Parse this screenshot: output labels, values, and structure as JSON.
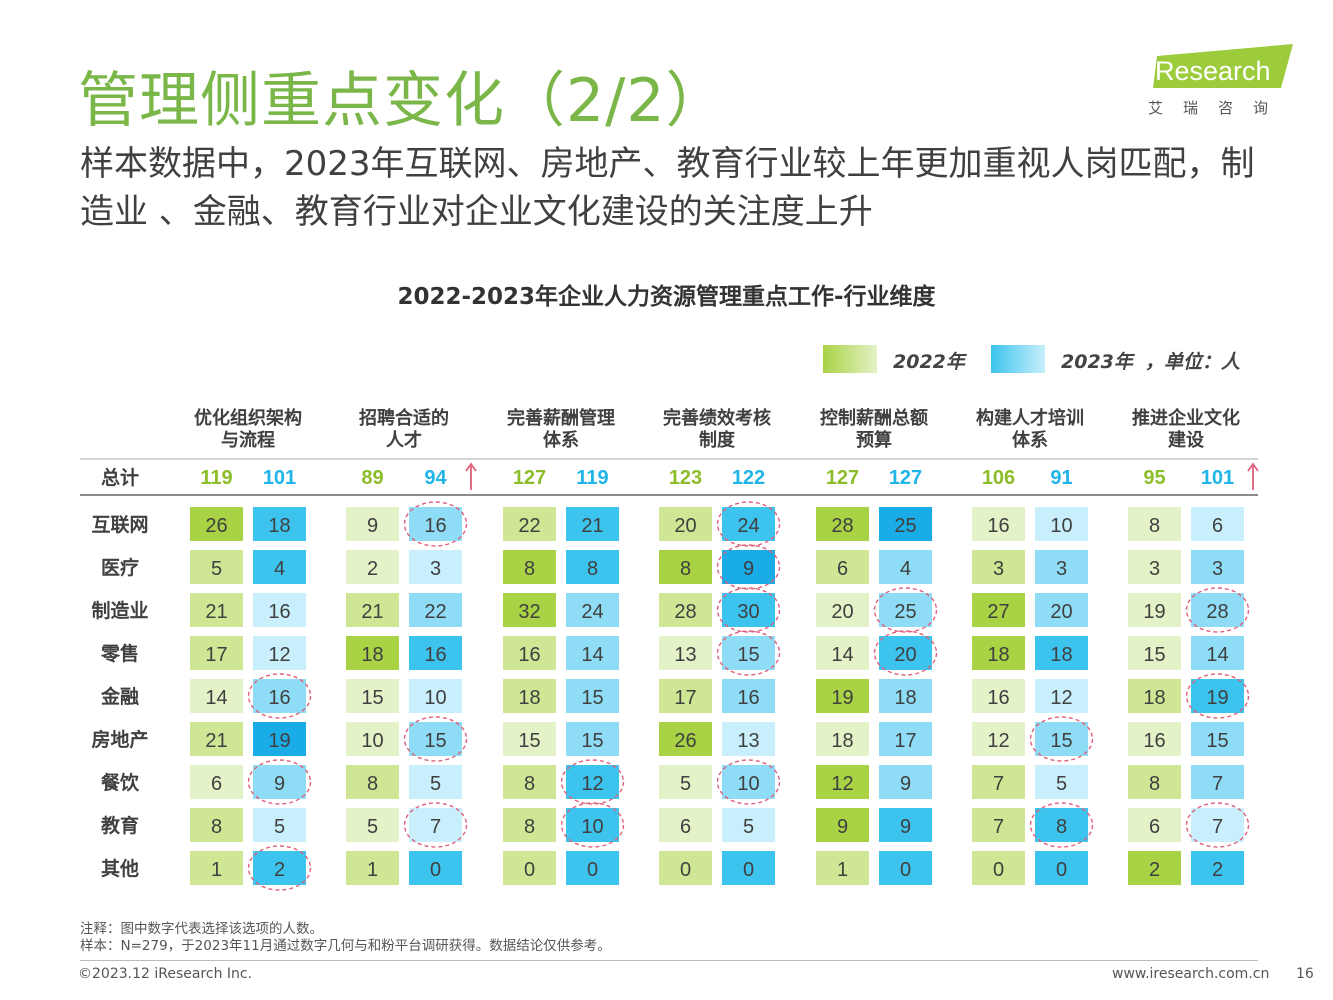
{
  "header": {
    "title": "管理侧重点变化（2/2）",
    "subtitle": "样本数据中，2023年互联网、房地产、教育行业较上年更加重视人岗匹配，制造业 、金融、教育行业对企业文化建设的关注度上升"
  },
  "logo": {
    "brand": "iResearch",
    "brand_cn": "艾瑞咨询",
    "color": "#9ccc3c"
  },
  "chart_data": {
    "type": "table",
    "title": "2022-2023年企业人力资源管理重点工作-行业维度",
    "legend": [
      "2022年",
      "2023年"
    ],
    "unit_label": "，单位：人",
    "colors": {
      "2022": [
        "#e4f2c8",
        "#cfe794",
        "#a9d245"
      ],
      "2023": [
        "#c8effb",
        "#8edcf5",
        "#3cc3ee",
        "#1aace6"
      ],
      "highlight_circle": "#e0607a",
      "up_arrow": "#e0607a",
      "total_2022": "#8cbd2a",
      "total_2023": "#1fb5e8"
    },
    "categories": [
      "优化组织架构\n与流程",
      "招聘合适的\n人才",
      "完善薪酬管理\n体系",
      "完善绩效考核\n制度",
      "控制薪酬总额\n预算",
      "构建人才培训\n体系",
      "推进企业文化\n建设"
    ],
    "total_label": "总计",
    "totals": {
      "2022": [
        119,
        89,
        127,
        123,
        127,
        106,
        95
      ],
      "2023": [
        101,
        94,
        119,
        122,
        127,
        91,
        101
      ]
    },
    "totals_rising": [
      false,
      true,
      false,
      false,
      false,
      false,
      true
    ],
    "rows": [
      "互联网",
      "医疗",
      "制造业",
      "零售",
      "金融",
      "房地产",
      "餐饮",
      "教育",
      "其他"
    ],
    "series": [
      {
        "name": "2022年",
        "values": [
          [
            26,
            9,
            22,
            20,
            28,
            16,
            8
          ],
          [
            5,
            2,
            8,
            8,
            6,
            3,
            3
          ],
          [
            21,
            21,
            32,
            28,
            20,
            27,
            19
          ],
          [
            17,
            18,
            16,
            13,
            14,
            18,
            15
          ],
          [
            14,
            15,
            18,
            17,
            19,
            16,
            18
          ],
          [
            21,
            10,
            15,
            26,
            18,
            12,
            16
          ],
          [
            6,
            8,
            8,
            5,
            12,
            7,
            8
          ],
          [
            8,
            5,
            8,
            6,
            9,
            7,
            6
          ],
          [
            1,
            1,
            0,
            0,
            1,
            0,
            2
          ]
        ]
      },
      {
        "name": "2023年",
        "values": [
          [
            18,
            16,
            21,
            24,
            25,
            10,
            6
          ],
          [
            4,
            3,
            8,
            9,
            4,
            3,
            3
          ],
          [
            16,
            22,
            24,
            30,
            25,
            20,
            28
          ],
          [
            12,
            16,
            14,
            15,
            20,
            18,
            14
          ],
          [
            16,
            10,
            15,
            16,
            18,
            12,
            19
          ],
          [
            19,
            15,
            15,
            13,
            17,
            15,
            15
          ],
          [
            9,
            5,
            12,
            10,
            9,
            5,
            7
          ],
          [
            5,
            7,
            10,
            5,
            9,
            8,
            7
          ],
          [
            2,
            0,
            0,
            0,
            0,
            0,
            2
          ]
        ],
        "tone": [
          [
            2,
            1,
            2,
            2,
            3,
            0,
            0
          ],
          [
            2,
            0,
            2,
            3,
            1,
            1,
            1
          ],
          [
            0,
            1,
            1,
            2,
            1,
            1,
            1
          ],
          [
            0,
            2,
            1,
            1,
            2,
            2,
            1
          ],
          [
            1,
            0,
            1,
            1,
            1,
            0,
            2
          ],
          [
            3,
            1,
            1,
            0,
            1,
            1,
            1
          ],
          [
            1,
            0,
            2,
            1,
            1,
            0,
            1
          ],
          [
            0,
            0,
            2,
            0,
            2,
            2,
            0
          ],
          [
            2,
            2,
            2,
            2,
            2,
            2,
            2
          ]
        ]
      }
    ],
    "tone_2022": [
      [
        2,
        0,
        1,
        1,
        2,
        0,
        0
      ],
      [
        1,
        0,
        2,
        2,
        1,
        1,
        0
      ],
      [
        1,
        1,
        2,
        1,
        0,
        2,
        0
      ],
      [
        1,
        2,
        1,
        0,
        0,
        2,
        0
      ],
      [
        0,
        0,
        1,
        1,
        2,
        0,
        1
      ],
      [
        1,
        0,
        0,
        2,
        0,
        0,
        0
      ],
      [
        0,
        1,
        1,
        0,
        2,
        1,
        1
      ],
      [
        1,
        0,
        1,
        0,
        2,
        1,
        0
      ],
      [
        1,
        1,
        1,
        1,
        1,
        1,
        2
      ]
    ],
    "highlighted_cells_2023": [
      [
        0,
        1
      ],
      [
        0,
        3
      ],
      [
        1,
        3
      ],
      [
        2,
        3
      ],
      [
        2,
        4
      ],
      [
        2,
        6
      ],
      [
        3,
        3
      ],
      [
        3,
        4
      ],
      [
        4,
        0
      ],
      [
        4,
        6
      ],
      [
        5,
        1
      ],
      [
        5,
        5
      ],
      [
        6,
        0
      ],
      [
        6,
        2
      ],
      [
        6,
        3
      ],
      [
        7,
        1
      ],
      [
        7,
        2
      ],
      [
        7,
        5
      ],
      [
        7,
        6
      ],
      [
        8,
        0
      ]
    ]
  },
  "footer": {
    "note": "注释：图中数字代表选择该选项的人数。",
    "sample": "样本：N=279，于2023年11月通过数字几何与和粉平台调研获得。数据结论仅供参考。",
    "copyright": "©2023.12 iResearch Inc.",
    "website": "www.iresearch.com.cn",
    "page_number": "16"
  }
}
